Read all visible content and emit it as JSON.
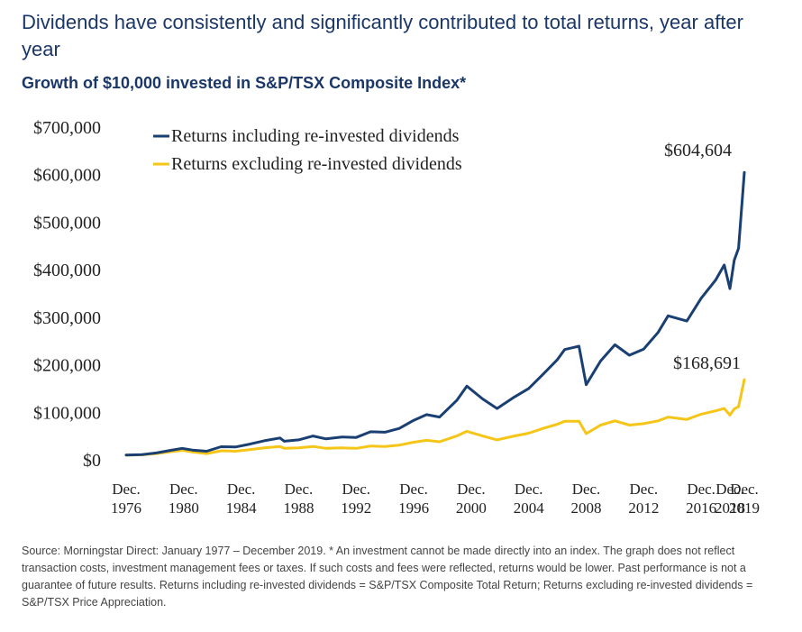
{
  "header": {
    "title": "Dividends have consistently and significantly contributed to total returns, year after year",
    "subtitle": "Growth of $10,000 invested in S&P/TSX Composite Index*"
  },
  "footnote": "Source: Morningstar Direct: January 1977 – December 2019. * An investment cannot be made directly into an index. The graph does not reflect transaction costs, investment management fees or taxes. If such costs and fees were reflected, returns would be lower. Past performance is not a guarantee of future results. Returns including re-invested dividends = S&P/TSX Composite Total Return; Returns excluding re-invested dividends = S&P/TSX Price Appreciation.",
  "chart_data": {
    "type": "line",
    "xlim": [
      1976.9,
      2019.9
    ],
    "ylim": [
      0,
      700000
    ],
    "yticks": [
      0,
      100000,
      200000,
      300000,
      400000,
      500000,
      600000,
      700000
    ],
    "ytick_labels": [
      "$0",
      "$100,000",
      "$200,000",
      "$300,000",
      "$400,000",
      "$500,000",
      "$600,000",
      "$700,000"
    ],
    "xticks": [
      {
        "year": 1976.9,
        "label_top": "Dec.",
        "label_bottom": "1976"
      },
      {
        "year": 1980.9,
        "label_top": "Dec.",
        "label_bottom": "1980"
      },
      {
        "year": 1984.9,
        "label_top": "Dec.",
        "label_bottom": "1984"
      },
      {
        "year": 1988.9,
        "label_top": "Dec.",
        "label_bottom": "1988"
      },
      {
        "year": 1992.9,
        "label_top": "Dec.",
        "label_bottom": "1992"
      },
      {
        "year": 1996.9,
        "label_top": "Dec.",
        "label_bottom": "1996"
      },
      {
        "year": 2000.9,
        "label_top": "Dec.",
        "label_bottom": "2000"
      },
      {
        "year": 2004.9,
        "label_top": "Dec.",
        "label_bottom": "2004"
      },
      {
        "year": 2008.9,
        "label_top": "Dec.",
        "label_bottom": "2008"
      },
      {
        "year": 2012.9,
        "label_top": "Dec.",
        "label_bottom": "2012"
      },
      {
        "year": 2016.9,
        "label_top": "Dec.",
        "label_bottom": "2016"
      },
      {
        "year": 2018.9,
        "label_top": "Dec.",
        "label_bottom": "2018"
      },
      {
        "year": 2019.9,
        "label_top": "Dec.",
        "label_bottom": "2019"
      }
    ],
    "legend_position": "top-left",
    "grid": false,
    "series": [
      {
        "name": "Returns including re-invested dividends",
        "color": "#1a3f73",
        "end_label": "$604,604",
        "x": [
          1976.9,
          1978,
          1979,
          1980,
          1980.8,
          1981.5,
          1982.5,
          1983.5,
          1984.5,
          1985.5,
          1986.5,
          1987.6,
          1987.9,
          1988.9,
          1989.9,
          1990.8,
          1991.9,
          1992.9,
          1993.9,
          1994.9,
          1995.9,
          1996.9,
          1997.8,
          1998.7,
          1999.9,
          2000.6,
          2001.7,
          2002.7,
          2003.9,
          2004.9,
          2005.9,
          2006.9,
          2007.4,
          2008.4,
          2008.9,
          2009.9,
          2010.9,
          2011.9,
          2012.9,
          2013.9,
          2014.6,
          2015.9,
          2016.9,
          2017.9,
          2018.5,
          2018.9,
          2019.2,
          2019.5,
          2019.9
        ],
        "values": [
          10000,
          10800,
          14500,
          20000,
          24000,
          20500,
          18000,
          27500,
          27000,
          33000,
          40000,
          46000,
          39000,
          42000,
          50000,
          44000,
          48000,
          47000,
          59000,
          58000,
          66000,
          83000,
          95000,
          90000,
          125000,
          155000,
          128000,
          108000,
          132000,
          150000,
          180000,
          211000,
          232000,
          239000,
          158000,
          208000,
          242000,
          220000,
          233000,
          268000,
          303000,
          292000,
          340000,
          378000,
          410000,
          360000,
          420000,
          445000,
          604604
        ]
      },
      {
        "name": "Returns excluding re-invested dividends",
        "color": "#f5c518",
        "end_label": "$168,691",
        "x": [
          1976.9,
          1978,
          1979,
          1980,
          1980.8,
          1981.5,
          1982.5,
          1983.5,
          1984.5,
          1985.5,
          1986.5,
          1987.6,
          1987.9,
          1988.9,
          1989.9,
          1990.8,
          1991.9,
          1992.9,
          1993.9,
          1994.9,
          1995.9,
          1996.9,
          1997.8,
          1998.7,
          1999.9,
          2000.6,
          2001.7,
          2002.7,
          2003.9,
          2004.9,
          2005.9,
          2006.9,
          2007.4,
          2008.4,
          2008.9,
          2009.9,
          2010.9,
          2011.9,
          2012.9,
          2013.9,
          2014.6,
          2015.9,
          2016.9,
          2017.9,
          2018.5,
          2018.9,
          2019.2,
          2019.5,
          2019.9
        ],
        "values": [
          10000,
          10500,
          13000,
          17000,
          20000,
          16500,
          13000,
          19000,
          18000,
          21500,
          25000,
          28000,
          24000,
          25000,
          28000,
          24000,
          25000,
          24000,
          29000,
          28000,
          31000,
          37000,
          41000,
          38000,
          50000,
          60000,
          50000,
          42000,
          50000,
          56000,
          66000,
          75000,
          81000,
          81000,
          55000,
          73000,
          82000,
          73000,
          76000,
          82000,
          90000,
          85000,
          96000,
          103000,
          108000,
          94000,
          107000,
          112000,
          168691
        ]
      }
    ]
  }
}
